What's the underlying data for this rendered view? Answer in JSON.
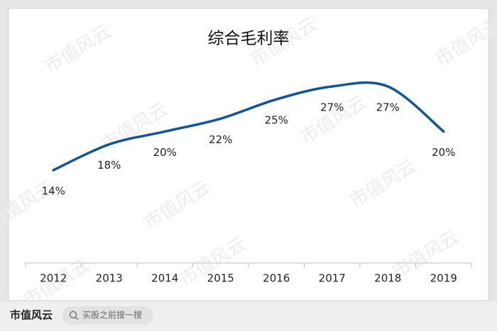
{
  "chart_data": {
    "type": "line",
    "title": "综合毛利率",
    "categories": [
      "2012",
      "2013",
      "2014",
      "2015",
      "2016",
      "2017",
      "2018",
      "2019"
    ],
    "values": [
      14,
      18,
      20,
      22,
      25,
      27,
      27,
      20
    ],
    "value_labels": [
      "14%",
      "18%",
      "20%",
      "22%",
      "25%",
      "27%",
      "27%",
      "20%"
    ],
    "color": "#0f5597",
    "smooth": true
  },
  "watermark": "市值风云",
  "footer": {
    "brand": "市值风云",
    "search": "买股之前搜一搜"
  }
}
